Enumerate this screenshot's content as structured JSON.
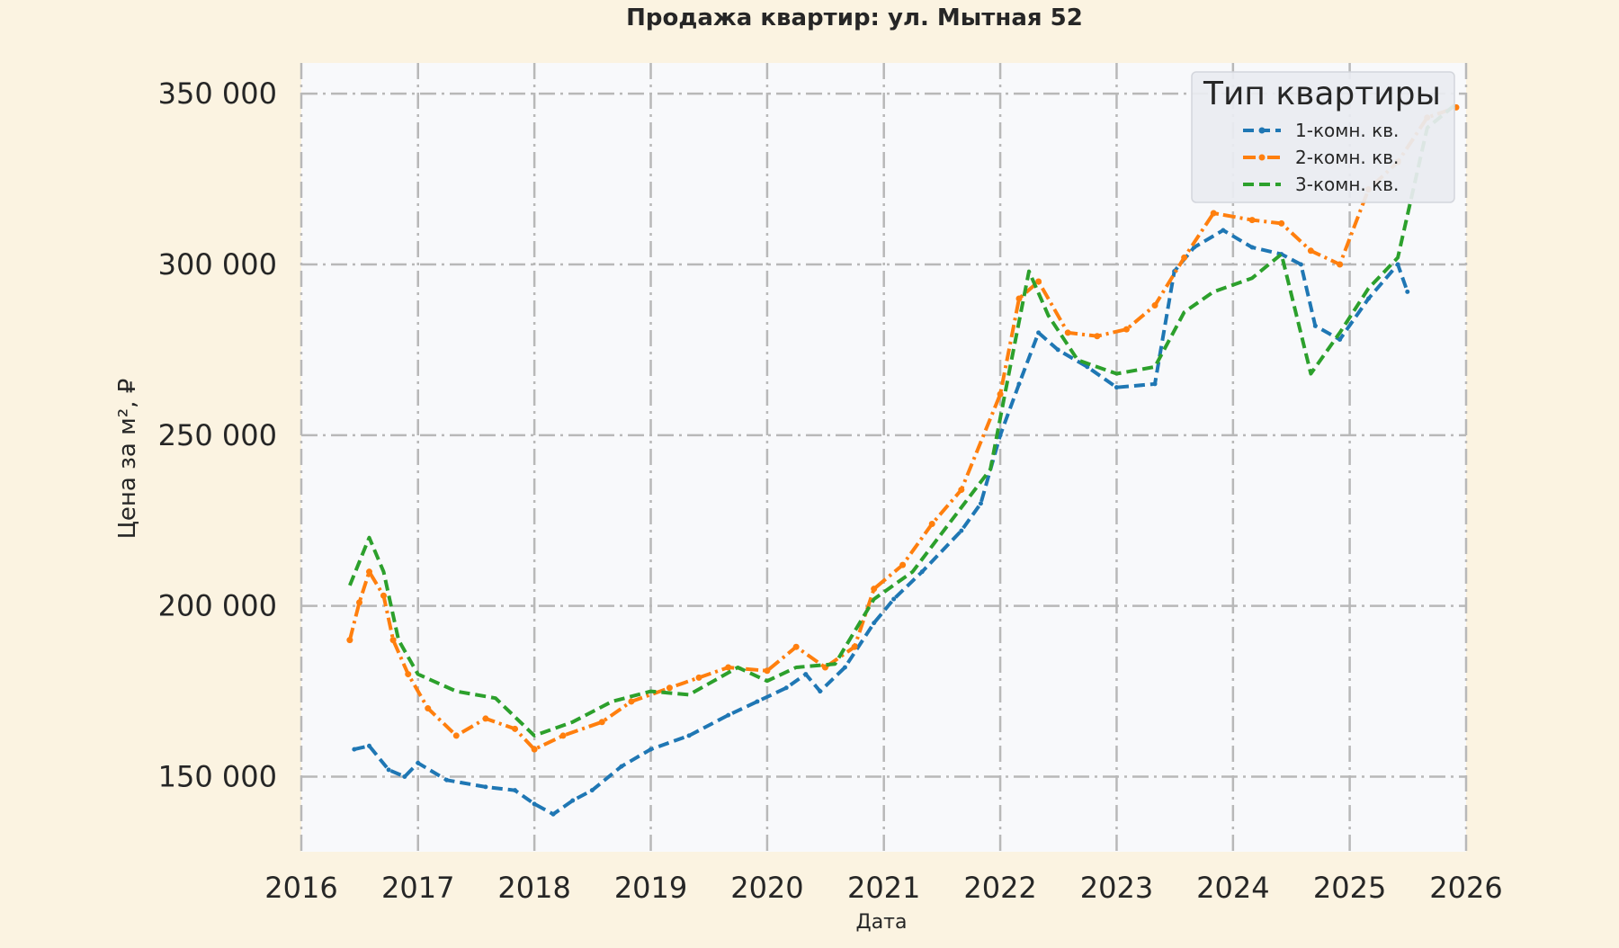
{
  "colors": {
    "page_background": "#fbf3e1",
    "plot_background": "#f8f9fb",
    "grid": "#b8b8b8",
    "text": "#262626",
    "series_1": "#1f77b4",
    "series_2": "#ff7f0e",
    "series_3": "#2ca02c"
  },
  "chart_data": {
    "type": "line",
    "title": "Продажа квартир: ул. Мытная 52",
    "xlabel": "Дата",
    "ylabel": "Цена за м², ₽",
    "x_ticks": [
      "2016",
      "2017",
      "2018",
      "2019",
      "2020",
      "2021",
      "2022",
      "2023",
      "2024",
      "2025",
      "2026"
    ],
    "y_ticks": [
      150000,
      200000,
      250000,
      300000,
      350000
    ],
    "y_tick_labels": [
      "150 000",
      "200 000",
      "250 000",
      "300 000",
      "350 000"
    ],
    "xlim": [
      "2016-01-01",
      "2026-01-01"
    ],
    "ylim": [
      128000,
      359000
    ],
    "grid": true,
    "legend": {
      "title": "Тип квартиры",
      "position": "top-right"
    },
    "series": [
      {
        "name": "1-комн. кв.",
        "style": "dashed",
        "marker": "small",
        "color_key": "series_1",
        "points": [
          [
            "2016-06-15",
            158000
          ],
          [
            "2016-08-01",
            159000
          ],
          [
            "2016-10-01",
            152000
          ],
          [
            "2016-11-20",
            150000
          ],
          [
            "2017-01-01",
            154000
          ],
          [
            "2017-04-01",
            149000
          ],
          [
            "2017-08-01",
            147000
          ],
          [
            "2017-11-01",
            146000
          ],
          [
            "2018-01-01",
            142000
          ],
          [
            "2018-03-01",
            139000
          ],
          [
            "2018-05-01",
            143000
          ],
          [
            "2018-07-01",
            146000
          ],
          [
            "2018-10-01",
            153000
          ],
          [
            "2019-01-01",
            158000
          ],
          [
            "2019-05-01",
            162000
          ],
          [
            "2019-09-01",
            168000
          ],
          [
            "2019-12-01",
            172000
          ],
          [
            "2020-03-01",
            176000
          ],
          [
            "2020-05-01",
            180000
          ],
          [
            "2020-06-15",
            175000
          ],
          [
            "2020-09-01",
            182000
          ],
          [
            "2020-12-01",
            195000
          ],
          [
            "2021-02-01",
            202000
          ],
          [
            "2021-05-01",
            210000
          ],
          [
            "2021-09-01",
            222000
          ],
          [
            "2021-11-01",
            230000
          ],
          [
            "2022-01-01",
            250000
          ],
          [
            "2022-03-01",
            265000
          ],
          [
            "2022-05-01",
            280000
          ],
          [
            "2022-07-01",
            275000
          ],
          [
            "2022-10-01",
            270000
          ],
          [
            "2023-01-01",
            264000
          ],
          [
            "2023-05-01",
            265000
          ],
          [
            "2023-07-01",
            298000
          ],
          [
            "2023-09-01",
            305000
          ],
          [
            "2023-12-01",
            310000
          ],
          [
            "2024-03-01",
            305000
          ],
          [
            "2024-06-01",
            303000
          ],
          [
            "2024-08-01",
            300000
          ],
          [
            "2024-09-15",
            282000
          ],
          [
            "2024-12-01",
            278000
          ],
          [
            "2025-03-01",
            290000
          ],
          [
            "2025-06-01",
            300000
          ],
          [
            "2025-07-01",
            292000
          ]
        ]
      },
      {
        "name": "2-комн. кв.",
        "style": "dashdot",
        "marker": "dot",
        "color_key": "series_2",
        "points": [
          [
            "2016-06-01",
            190000
          ],
          [
            "2016-07-01",
            201000
          ],
          [
            "2016-08-01",
            210000
          ],
          [
            "2016-09-15",
            203000
          ],
          [
            "2016-10-15",
            190000
          ],
          [
            "2016-12-01",
            180000
          ],
          [
            "2017-02-01",
            170000
          ],
          [
            "2017-05-01",
            162000
          ],
          [
            "2017-08-01",
            167000
          ],
          [
            "2017-11-01",
            164000
          ],
          [
            "2018-01-01",
            158000
          ],
          [
            "2018-04-01",
            162000
          ],
          [
            "2018-08-01",
            166000
          ],
          [
            "2018-11-01",
            172000
          ],
          [
            "2019-03-01",
            176000
          ],
          [
            "2019-06-01",
            179000
          ],
          [
            "2019-09-01",
            182000
          ],
          [
            "2020-01-01",
            181000
          ],
          [
            "2020-04-01",
            188000
          ],
          [
            "2020-07-01",
            182000
          ],
          [
            "2020-10-01",
            188000
          ],
          [
            "2020-12-01",
            205000
          ],
          [
            "2021-03-01",
            212000
          ],
          [
            "2021-06-01",
            224000
          ],
          [
            "2021-09-01",
            234000
          ],
          [
            "2022-01-01",
            262000
          ],
          [
            "2022-03-01",
            290000
          ],
          [
            "2022-05-01",
            295000
          ],
          [
            "2022-08-01",
            280000
          ],
          [
            "2022-11-01",
            279000
          ],
          [
            "2023-02-01",
            281000
          ],
          [
            "2023-05-01",
            288000
          ],
          [
            "2023-08-01",
            302000
          ],
          [
            "2023-11-01",
            315000
          ],
          [
            "2024-03-01",
            313000
          ],
          [
            "2024-06-01",
            312000
          ],
          [
            "2024-09-01",
            304000
          ],
          [
            "2024-12-01",
            300000
          ],
          [
            "2025-03-01",
            322000
          ],
          [
            "2025-06-01",
            330000
          ],
          [
            "2025-09-01",
            343000
          ],
          [
            "2025-12-01",
            346000
          ]
        ]
      },
      {
        "name": "3-комн. кв.",
        "style": "dashed",
        "marker": "none",
        "color_key": "series_3",
        "points": [
          [
            "2016-06-01",
            206000
          ],
          [
            "2016-08-01",
            220000
          ],
          [
            "2016-09-15",
            210000
          ],
          [
            "2016-11-01",
            190000
          ],
          [
            "2017-01-01",
            180000
          ],
          [
            "2017-05-01",
            175000
          ],
          [
            "2017-09-01",
            173000
          ],
          [
            "2018-01-01",
            162000
          ],
          [
            "2018-05-01",
            166000
          ],
          [
            "2018-09-01",
            172000
          ],
          [
            "2019-01-01",
            175000
          ],
          [
            "2019-05-01",
            174000
          ],
          [
            "2019-10-01",
            182000
          ],
          [
            "2020-01-01",
            178000
          ],
          [
            "2020-04-01",
            182000
          ],
          [
            "2020-08-01",
            183000
          ],
          [
            "2020-12-01",
            202000
          ],
          [
            "2021-04-01",
            210000
          ],
          [
            "2021-08-01",
            225000
          ],
          [
            "2021-12-01",
            240000
          ],
          [
            "2022-02-01",
            270000
          ],
          [
            "2022-04-01",
            298000
          ],
          [
            "2022-06-01",
            285000
          ],
          [
            "2022-09-01",
            272000
          ],
          [
            "2023-01-01",
            268000
          ],
          [
            "2023-05-01",
            270000
          ],
          [
            "2023-08-01",
            286000
          ],
          [
            "2023-11-01",
            292000
          ],
          [
            "2024-03-01",
            296000
          ],
          [
            "2024-06-01",
            303000
          ],
          [
            "2024-09-01",
            268000
          ],
          [
            "2024-12-01",
            280000
          ],
          [
            "2025-03-01",
            293000
          ],
          [
            "2025-06-01",
            302000
          ],
          [
            "2025-09-01",
            340000
          ],
          [
            "2025-12-01",
            347000
          ]
        ]
      }
    ]
  }
}
